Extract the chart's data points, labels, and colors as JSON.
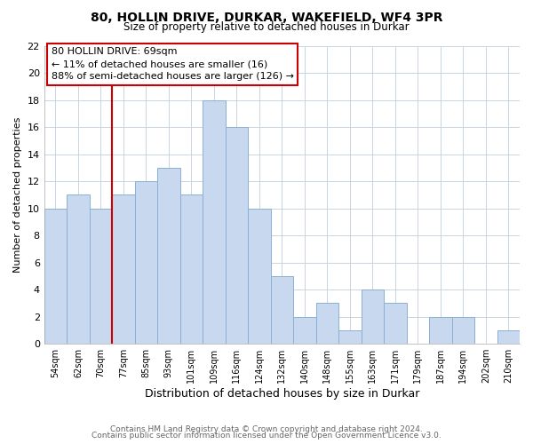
{
  "title": "80, HOLLIN DRIVE, DURKAR, WAKEFIELD, WF4 3PR",
  "subtitle": "Size of property relative to detached houses in Durkar",
  "xlabel": "Distribution of detached houses by size in Durkar",
  "ylabel": "Number of detached properties",
  "bar_labels": [
    "54sqm",
    "62sqm",
    "70sqm",
    "77sqm",
    "85sqm",
    "93sqm",
    "101sqm",
    "109sqm",
    "116sqm",
    "124sqm",
    "132sqm",
    "140sqm",
    "148sqm",
    "155sqm",
    "163sqm",
    "171sqm",
    "179sqm",
    "187sqm",
    "194sqm",
    "202sqm",
    "210sqm"
  ],
  "bar_values": [
    10,
    11,
    10,
    11,
    12,
    13,
    11,
    18,
    16,
    10,
    5,
    2,
    3,
    1,
    4,
    3,
    0,
    2,
    2,
    0,
    1
  ],
  "bar_color": "#c8d9ef",
  "bar_edge_color": "#8ab0d4",
  "vline_color": "#cc0000",
  "ylim": [
    0,
    22
  ],
  "yticks": [
    0,
    2,
    4,
    6,
    8,
    10,
    12,
    14,
    16,
    18,
    20,
    22
  ],
  "annotation_line1": "80 HOLLIN DRIVE: 69sqm",
  "annotation_line2": "← 11% of detached houses are smaller (16)",
  "annotation_line3": "88% of semi-detached houses are larger (126) →",
  "annotation_box_edge": "#cc0000",
  "footer_line1": "Contains HM Land Registry data © Crown copyright and database right 2024.",
  "footer_line2": "Contains public sector information licensed under the Open Government Licence v3.0.",
  "background_color": "#ffffff",
  "grid_color": "#c8d4e0"
}
